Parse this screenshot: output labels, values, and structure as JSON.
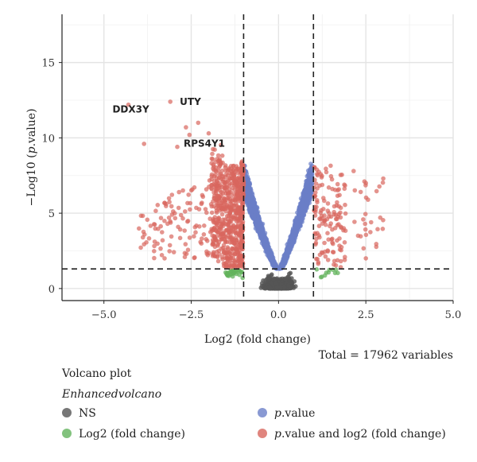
{
  "chart_data": {
    "type": "scatter",
    "title": "Volcano plot",
    "subtitle": "Enhancedvolcano",
    "caption": "Total = 17962 variables",
    "xlabel": "Log2 (fold change)",
    "ylabel": "−Log10 (p.value)",
    "ylabel_prefix": "−Log10 (",
    "ylabel_italic": "p",
    "ylabel_suffix": ".value)",
    "xlim": [
      -6.2,
      5.0
    ],
    "ylim": [
      -0.8,
      18.2
    ],
    "xticks": [
      -5.0,
      -2.5,
      0.0,
      2.5,
      5.0
    ],
    "xtick_labels": [
      "−5.0",
      "−2.5",
      "0.0",
      "2.5",
      "5.0"
    ],
    "yticks": [
      0,
      5,
      10,
      15
    ],
    "ytick_labels": [
      "0",
      "5",
      "10",
      "15"
    ],
    "fc_cutoff": [
      -1,
      1
    ],
    "p_cutoff": 1.3,
    "grid": true,
    "legend_position": "bottom",
    "series": [
      {
        "name": "NS",
        "color": "#555555"
      },
      {
        "name": "Log2 (fold change)",
        "color": "#63b35c"
      },
      {
        "name": "p.value",
        "color": "#6b7fc8"
      },
      {
        "name": "p.value and log2 (fold change)",
        "color": "#d8665e"
      }
    ],
    "legend_labels": [
      {
        "prefix": "NS",
        "italic": "",
        "suffix": ""
      },
      {
        "prefix": "Log2 (fold change)",
        "italic": "",
        "suffix": ""
      },
      {
        "prefix": "",
        "italic": "p",
        "suffix": ".value"
      },
      {
        "prefix": "",
        "italic": "p",
        "suffix": ".value and log2 (fold change)"
      }
    ],
    "labeled_genes": [
      {
        "label": "DDX3Y",
        "x": -4.3,
        "y": 12.2
      },
      {
        "label": "UTY",
        "x": -3.1,
        "y": 12.4
      },
      {
        "label": "RPS4Y1",
        "x": -2.9,
        "y": 9.4
      }
    ]
  }
}
